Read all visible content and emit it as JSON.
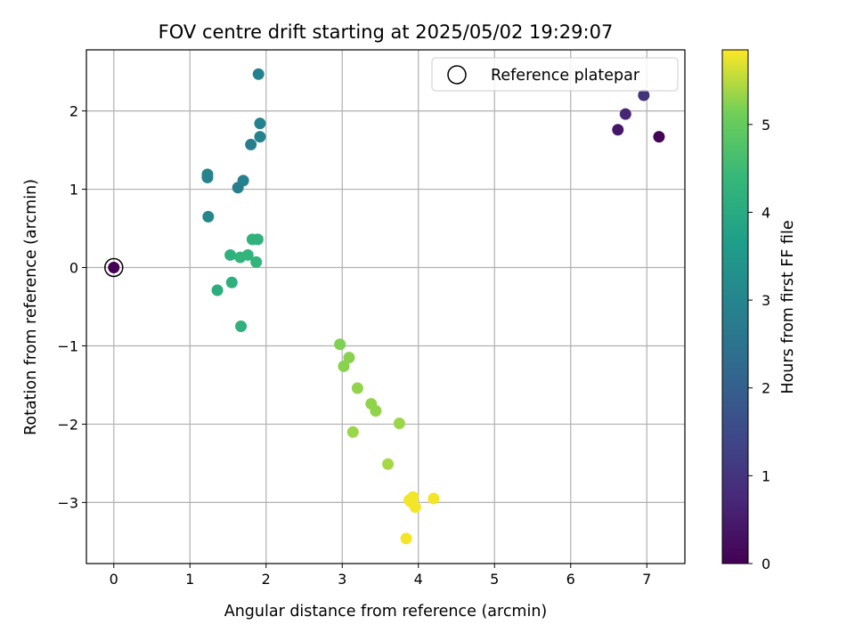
{
  "chart_data": {
    "type": "scatter",
    "title": "FOV centre drift starting at 2025/05/02 19:29:07",
    "xlabel": "Angular distance from reference (arcmin)",
    "ylabel": "Rotation from reference (arcmin)",
    "xlim": [
      -0.36,
      7.5
    ],
    "ylim": [
      -3.78,
      2.78
    ],
    "xticks": [
      0,
      1,
      2,
      3,
      4,
      5,
      6,
      7
    ],
    "yticks": [
      -3,
      -2,
      -1,
      0,
      1,
      2
    ],
    "grid": true,
    "legend": {
      "placement": "top-right",
      "entries": [
        "Reference platepar"
      ]
    },
    "colorbar": {
      "label": "Hours from first FF file",
      "range": [
        0,
        5.85
      ],
      "ticks": [
        0,
        1,
        2,
        3,
        4,
        5
      ],
      "colormap": "viridis"
    },
    "reference_point": {
      "x": 0,
      "y": 0
    },
    "points": [
      {
        "x": 0.0,
        "y": 0.0,
        "t": 0.0
      },
      {
        "x": 7.16,
        "y": 1.67,
        "t": 0.05
      },
      {
        "x": 6.62,
        "y": 1.76,
        "t": 0.4
      },
      {
        "x": 6.72,
        "y": 1.96,
        "t": 0.7
      },
      {
        "x": 6.96,
        "y": 2.2,
        "t": 0.95
      },
      {
        "x": 1.9,
        "y": 2.47,
        "t": 2.9
      },
      {
        "x": 1.92,
        "y": 1.84,
        "t": 2.9
      },
      {
        "x": 1.92,
        "y": 1.67,
        "t": 2.9
      },
      {
        "x": 1.8,
        "y": 1.57,
        "t": 2.85
      },
      {
        "x": 1.23,
        "y": 1.19,
        "t": 2.95
      },
      {
        "x": 1.23,
        "y": 1.15,
        "t": 2.95
      },
      {
        "x": 1.7,
        "y": 1.11,
        "t": 2.9
      },
      {
        "x": 1.63,
        "y": 1.02,
        "t": 2.85
      },
      {
        "x": 1.24,
        "y": 0.65,
        "t": 3.05
      },
      {
        "x": 1.82,
        "y": 0.36,
        "t": 4.25
      },
      {
        "x": 1.89,
        "y": 0.36,
        "t": 4.25
      },
      {
        "x": 1.53,
        "y": 0.16,
        "t": 4.2
      },
      {
        "x": 1.76,
        "y": 0.16,
        "t": 4.3
      },
      {
        "x": 1.66,
        "y": 0.13,
        "t": 4.3
      },
      {
        "x": 1.87,
        "y": 0.07,
        "t": 4.3
      },
      {
        "x": 1.36,
        "y": -0.29,
        "t": 4.1
      },
      {
        "x": 1.55,
        "y": -0.19,
        "t": 4.15
      },
      {
        "x": 1.67,
        "y": -0.75,
        "t": 4.2
      },
      {
        "x": 2.97,
        "y": -0.98,
        "t": 5.2
      },
      {
        "x": 3.09,
        "y": -1.15,
        "t": 5.25
      },
      {
        "x": 3.02,
        "y": -1.26,
        "t": 5.25
      },
      {
        "x": 3.2,
        "y": -1.54,
        "t": 5.3
      },
      {
        "x": 3.38,
        "y": -1.74,
        "t": 5.3
      },
      {
        "x": 3.44,
        "y": -1.83,
        "t": 5.3
      },
      {
        "x": 3.14,
        "y": -2.1,
        "t": 5.35
      },
      {
        "x": 3.75,
        "y": -1.99,
        "t": 5.35
      },
      {
        "x": 3.6,
        "y": -2.51,
        "t": 5.4
      },
      {
        "x": 3.93,
        "y": -2.93,
        "t": 5.8
      },
      {
        "x": 4.2,
        "y": -2.95,
        "t": 5.8
      },
      {
        "x": 3.9,
        "y": -2.99,
        "t": 5.8
      },
      {
        "x": 3.88,
        "y": -2.97,
        "t": 5.8
      },
      {
        "x": 3.96,
        "y": -3.06,
        "t": 5.8
      },
      {
        "x": 3.84,
        "y": -3.46,
        "t": 5.8
      }
    ]
  }
}
